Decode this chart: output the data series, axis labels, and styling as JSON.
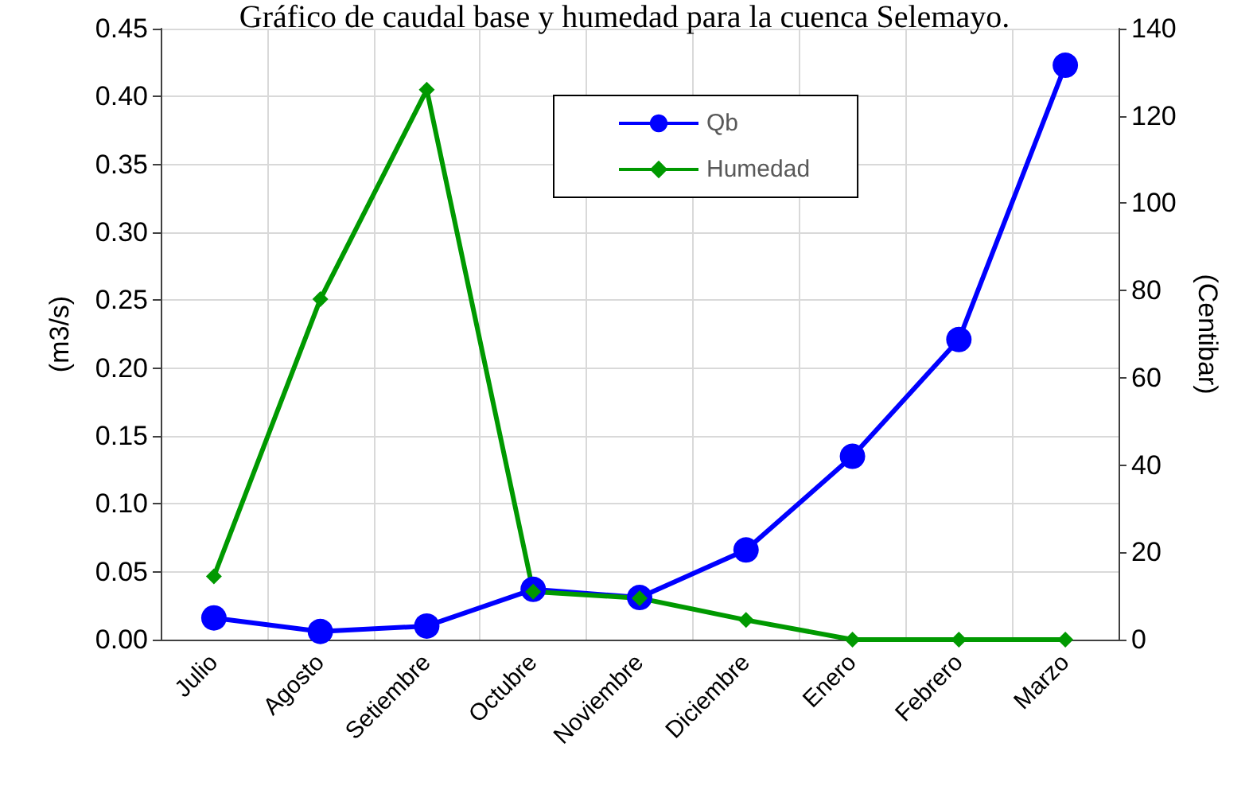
{
  "chart_data": {
    "type": "line",
    "title": "Gráfico de caudal base y humedad para la cuenca Selemayo.",
    "ylabel": "(m3/s)",
    "y2label": "(Centibar)",
    "categories": [
      "Julio",
      "Agosto",
      "Setiembre",
      "Octubre",
      "Noviembre",
      "Diciembre",
      "Enero",
      "Febrero",
      "Marzo"
    ],
    "series": [
      {
        "name": "Qb",
        "color": "#0000ff",
        "marker": "circle",
        "values": [
          0.016,
          0.006,
          0.01,
          0.037,
          0.031,
          0.066,
          0.135,
          0.221,
          0.423
        ]
      },
      {
        "name": "Humedad",
        "color": "#009900",
        "marker": "diamond",
        "axis": "y2",
        "values": [
          14.5,
          78,
          126,
          11,
          9.5,
          4.5,
          0,
          0,
          0
        ]
      }
    ],
    "ylim": [
      0,
      0.45
    ],
    "yticks": [
      {
        "value": 0,
        "label": "0.00"
      },
      {
        "value": 0.05,
        "label": "0.05"
      },
      {
        "value": 0.1,
        "label": "0.10"
      },
      {
        "value": 0.15,
        "label": "0.15"
      },
      {
        "value": 0.2,
        "label": "0.20"
      },
      {
        "value": 0.25,
        "label": "0.25"
      },
      {
        "value": 0.3,
        "label": "0.30"
      },
      {
        "value": 0.35,
        "label": "0.35"
      },
      {
        "value": 0.4,
        "label": "0.40"
      },
      {
        "value": 0.45,
        "label": "0.45"
      }
    ],
    "y2lim": [
      0,
      140
    ],
    "y2ticks": [
      0,
      20,
      40,
      60,
      80,
      100,
      120,
      140
    ],
    "grid": true,
    "legend": "top",
    "line_style": "solid"
  }
}
